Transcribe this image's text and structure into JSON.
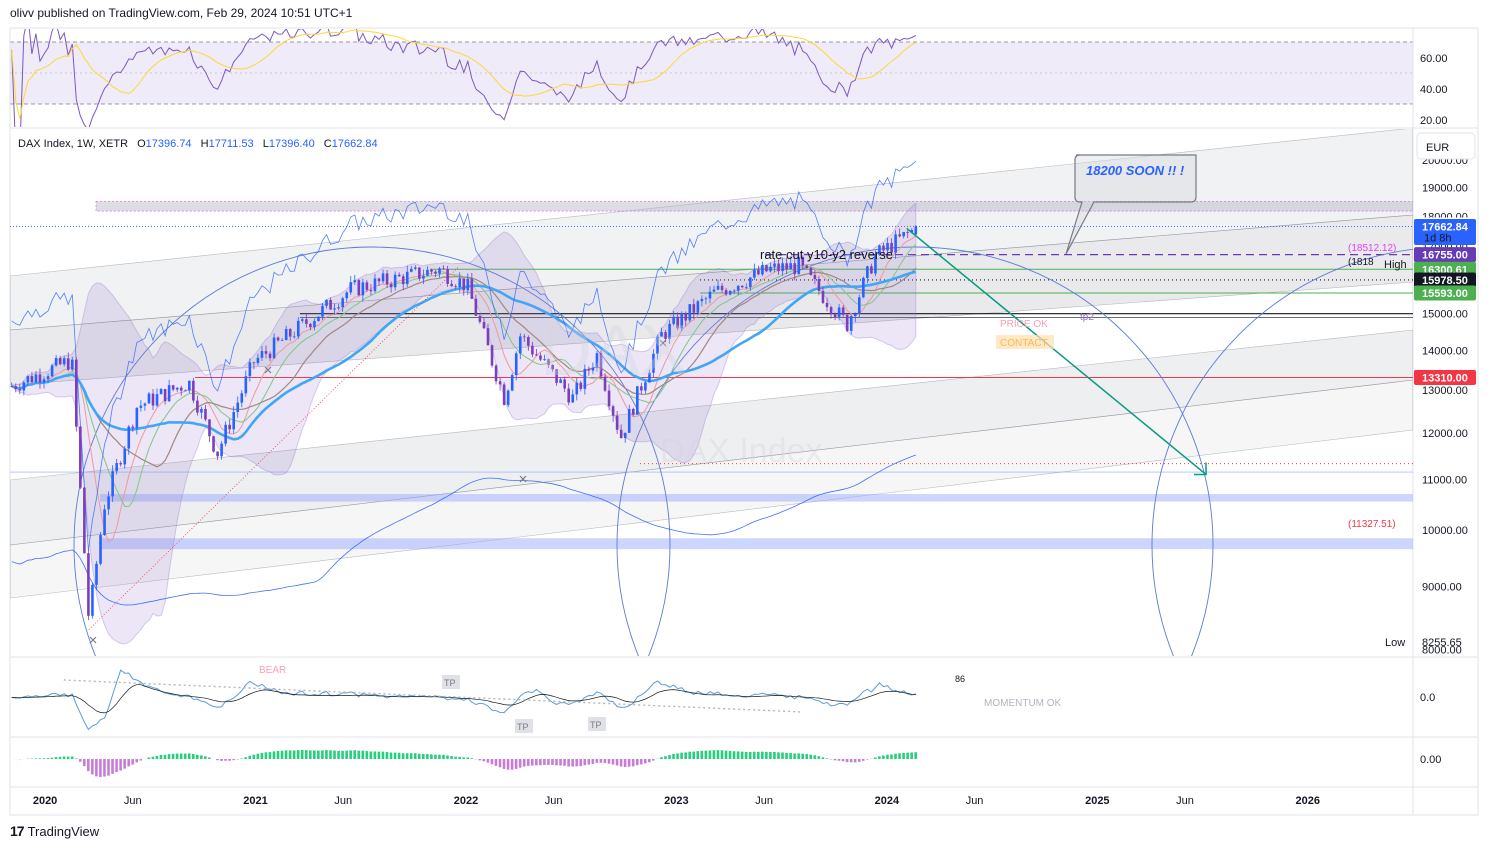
{
  "header": {
    "publisher_line": "olivv published on TradingView.com, Feb 29, 2024 10:51 UTC+1"
  },
  "footer": {
    "brand": "TradingView",
    "logo_glyph": "17"
  },
  "colors": {
    "up": "#2962ff",
    "down": "#7b3fbd",
    "rsi_band": "#7e57c2",
    "accent_red": "#f23645",
    "accent_green": "#4caf50",
    "price_tag": "#2962ff"
  },
  "legend": {
    "symbol": "DAX Index, 1W, XETR",
    "open_label": "O",
    "open": "17396.74",
    "high_label": "H",
    "high": "17711.53",
    "low_label": "L",
    "low": "17396.40",
    "close_label": "C",
    "close": "17662.84"
  },
  "currency": "EUR",
  "annotations": {
    "callout": "18200 SOON !! !",
    "zone_label": "rate cut y10-y2 reverse",
    "price_ok": "PRICE OK",
    "contact": "CONTACT",
    "tp2": "tp2",
    "bear": "BEAR",
    "tp": "TP",
    "momentum_ok": "MOMENTUM OK",
    "watermark_symbol": "DAX",
    "watermark_name": "DAX Index",
    "level_18512": "(18512.12)",
    "level_18180": "(1818",
    "level_11327": "(11327.51)",
    "high_label": "High",
    "low_label": "Low",
    "low_value": "8255.65",
    "momentum_last": "86"
  },
  "price_tags": [
    {
      "value": "17711.53",
      "bg": "#ffffff",
      "fg": "#131722"
    },
    {
      "value": "17662.84",
      "bg": "#2962ff",
      "fg": "#ffffff",
      "sub": "1d 8h"
    },
    {
      "value": "16755.00",
      "bg": "#673ab7",
      "fg": "#ffffff"
    },
    {
      "value": "16300.61",
      "bg": "#4caf50",
      "fg": "#ffffff"
    },
    {
      "value": "15978.50",
      "bg": "#131722",
      "fg": "#ffffff"
    },
    {
      "value": "15593.00",
      "bg": "#4caf50",
      "fg": "#ffffff"
    },
    {
      "value": "13310.00",
      "bg": "#f23645",
      "fg": "#ffffff"
    }
  ],
  "rsi_axis": [
    "60.00",
    "40.00",
    "20.00"
  ],
  "momentum_axis": [
    "0.0"
  ],
  "macd_axis": [
    "0.00"
  ],
  "chart_data": {
    "type": "candlestick",
    "title": "DAX Index, 1W, XETR",
    "ylabel": "EUR",
    "scale": "log",
    "ylim": [
      7900,
      21200
    ],
    "y_ticks": [
      8000,
      9000,
      10000,
      11000,
      12000,
      13000,
      14000,
      15000,
      16000,
      17000,
      18000,
      19000,
      20000
    ],
    "y_tick_labels": [
      "8000.00",
      "9000.00",
      "10000.00",
      "11000.00",
      "12000.00",
      "13000.00",
      "14000.00",
      "15000.00",
      "16000.00",
      "17000.00",
      "18000.00",
      "19000.00",
      "20000.00"
    ],
    "x_ticks": [
      "2020",
      "Jun",
      "2021",
      "Jun",
      "2022",
      "Jun",
      "2023",
      "Jun",
      "2024",
      "Jun",
      "2025",
      "Jun",
      "2026"
    ],
    "x_tick_dates": [
      "2020-01",
      "2020-06",
      "2021-01",
      "2021-06",
      "2022-01",
      "2022-06",
      "2023-01",
      "2023-06",
      "2024-01",
      "2024-06",
      "2025-01",
      "2025-06",
      "2026-01"
    ],
    "x_range": [
      "2019-11",
      "2026-07"
    ],
    "last_bar": {
      "open": 17396.74,
      "high": 17711.53,
      "low": 17396.4,
      "close": 17662.84,
      "date": "2024-02-26"
    },
    "price_path": [
      [
        "2019-11-04",
        13100
      ],
      [
        "2020-02-17",
        13750
      ],
      [
        "2020-03-16",
        8450
      ],
      [
        "2020-04-13",
        10500
      ],
      [
        "2020-06-08",
        12600
      ],
      [
        "2020-09-07",
        13200
      ],
      [
        "2020-10-26",
        11550
      ],
      [
        "2020-12-28",
        13700
      ],
      [
        "2021-03-15",
        14600
      ],
      [
        "2021-06-14",
        15700
      ],
      [
        "2021-11-15",
        16300
      ],
      [
        "2022-01-03",
        15800
      ],
      [
        "2022-03-07",
        12800
      ],
      [
        "2022-04-04",
        14400
      ],
      [
        "2022-07-04",
        12800
      ],
      [
        "2022-08-15",
        13900
      ],
      [
        "2022-09-26",
        11900
      ],
      [
        "2022-12-05",
        14400
      ],
      [
        "2023-03-06",
        15600
      ],
      [
        "2023-06-12",
        16300
      ],
      [
        "2023-07-31",
        16400
      ],
      [
        "2023-10-23",
        14700
      ],
      [
        "2023-12-11",
        16700
      ],
      [
        "2024-02-26",
        17662.84
      ]
    ],
    "levels": [
      18512.12,
      18180,
      16755.0,
      16300.61,
      15978.5,
      15593.0,
      13310.0,
      11327.51
    ],
    "projection": {
      "from": [
        "2024-02-05",
        17600
      ],
      "to": [
        "2025-07-07",
        11100
      ]
    },
    "rsi": {
      "ylim": [
        15,
        72
      ],
      "levels": [
        70,
        50,
        30
      ]
    },
    "macd": {
      "ylim": [
        -1,
        1
      ]
    }
  }
}
